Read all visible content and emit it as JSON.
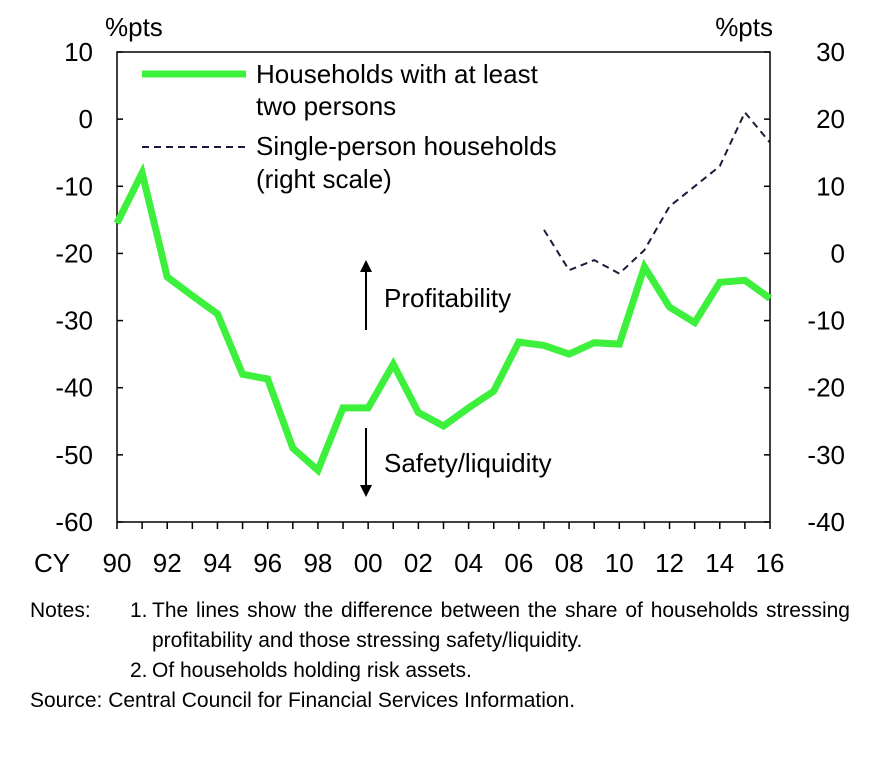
{
  "chart_data": {
    "type": "line",
    "title": "",
    "x_prefix": "CY",
    "x": [
      1990,
      1991,
      1992,
      1993,
      1994,
      1995,
      1996,
      1997,
      1998,
      1999,
      2000,
      2001,
      2002,
      2003,
      2004,
      2005,
      2006,
      2007,
      2008,
      2009,
      2010,
      2011,
      2012,
      2013,
      2014,
      2015,
      2016
    ],
    "x_tick_labels": [
      "90",
      "92",
      "94",
      "96",
      "98",
      "00",
      "02",
      "04",
      "06",
      "08",
      "10",
      "12",
      "14",
      "16"
    ],
    "left_axis": {
      "unit": "%pts",
      "ylim": [
        -60,
        10
      ],
      "ticks": [
        "10",
        "0",
        "-10",
        "-20",
        "-30",
        "-40",
        "-50",
        "-60"
      ]
    },
    "right_axis": {
      "unit": "%pts",
      "ylim": [
        -40,
        30
      ],
      "ticks": [
        "30",
        "20",
        "10",
        "0",
        "-10",
        "-20",
        "-30",
        "-40"
      ]
    },
    "series": [
      {
        "name": "Households with at least two persons",
        "axis": "left",
        "color": "#3cf03c",
        "style": "solid",
        "x": [
          1990,
          1991,
          1992,
          1993,
          1994,
          1995,
          1996,
          1997,
          1998,
          1999,
          2000,
          2001,
          2002,
          2003,
          2004,
          2005,
          2006,
          2007,
          2008,
          2009,
          2010,
          2011,
          2012,
          2013,
          2014,
          2015,
          2016
        ],
        "values": [
          -15.5,
          -8,
          -23.5,
          -26.3,
          -29,
          -38,
          -38.7,
          -49,
          -52.3,
          -43,
          -43,
          -36.5,
          -43.7,
          -45.7,
          -43,
          -40.5,
          -33.2,
          -33.7,
          -35,
          -33.3,
          -33.5,
          -22,
          -28,
          -30.3,
          -24.3,
          -24,
          -26.7
        ]
      },
      {
        "name": "Single-person households (right scale)",
        "axis": "right",
        "color": "#1a1a3a",
        "style": "dashed",
        "x": [
          2007,
          2008,
          2009,
          2010,
          2011,
          2012,
          2013,
          2014,
          2015,
          2016
        ],
        "values": [
          3.5,
          -2.5,
          -1,
          -3,
          0.5,
          7,
          10,
          13,
          21,
          16.5
        ]
      }
    ],
    "annotations": [
      {
        "text": "Profitability",
        "arrow": "up"
      },
      {
        "text": "Safety/liquidity",
        "arrow": "down"
      }
    ],
    "grid": false,
    "legend_position": "top-left"
  },
  "notes": {
    "lead": "Notes:",
    "items": [
      {
        "num": "1.",
        "text": "The lines show the difference between the share of households stressing profitability and those stressing safety/liquidity."
      },
      {
        "num": "2.",
        "text": "Of households holding risk assets."
      }
    ],
    "source": "Source: Central Council for Financial Services Information."
  }
}
